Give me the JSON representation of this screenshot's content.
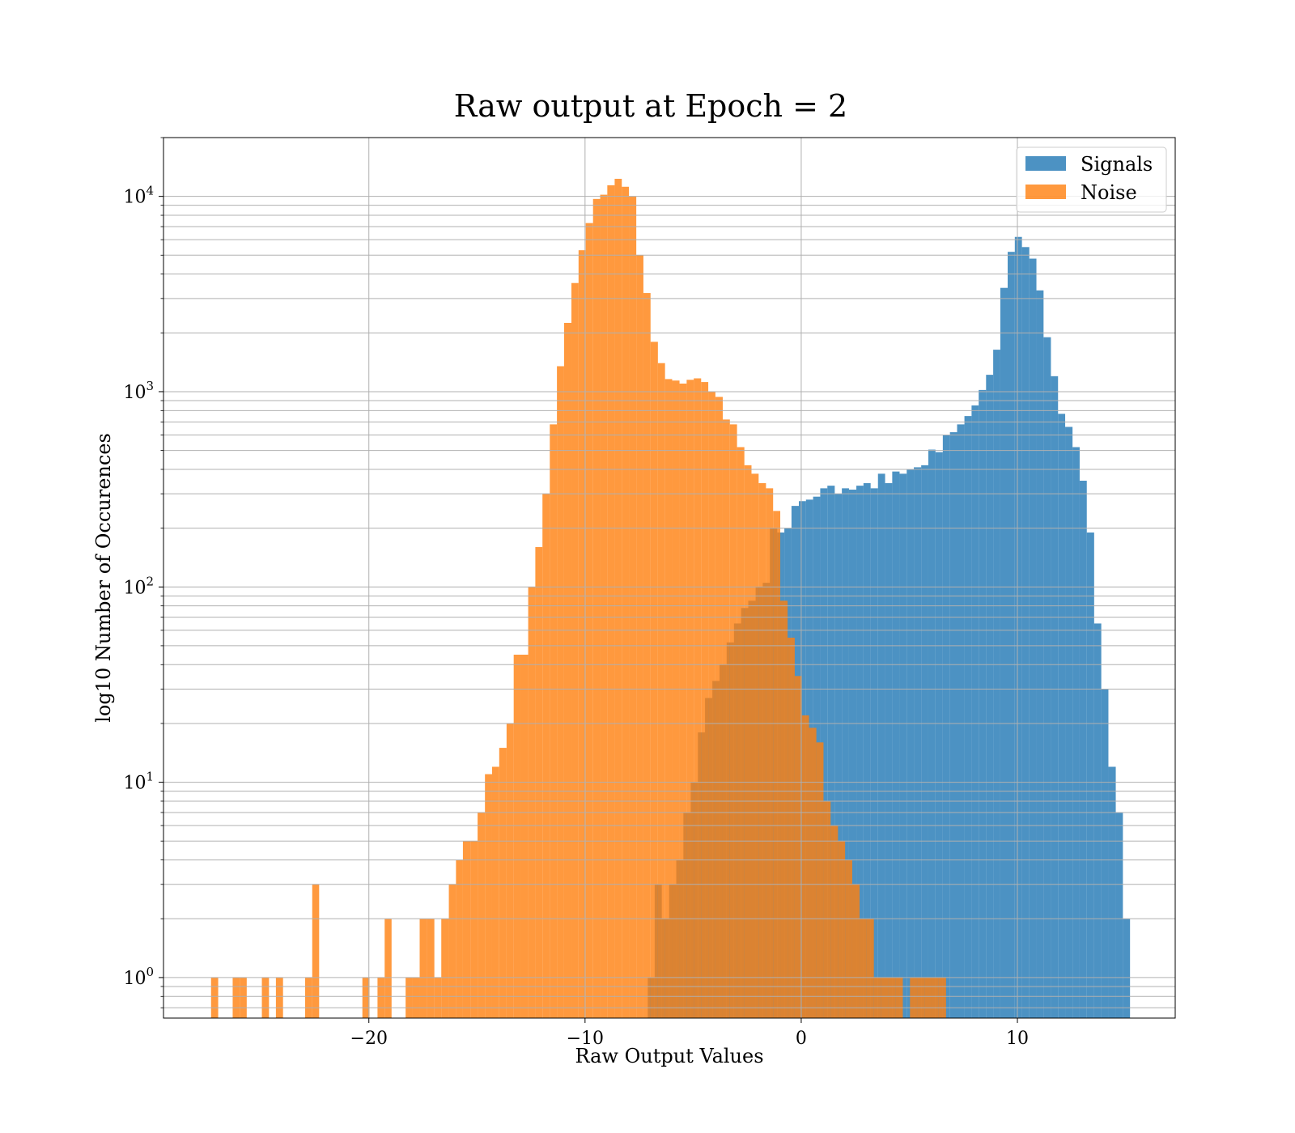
{
  "chart_data": {
    "type": "histogram",
    "title": "Raw output at Epoch = 2",
    "xlabel": "Raw Output Values",
    "ylabel": "log10 Number of Occurences",
    "xlim": [
      -29.5,
      17.3
    ],
    "ylim": [
      0.62,
      20000
    ],
    "yscale": "log",
    "grid": true,
    "legend": "top-right",
    "xticks": [
      {
        "value": -20,
        "label": "−20"
      },
      {
        "value": -10,
        "label": "−10"
      },
      {
        "value": 0,
        "label": "0"
      },
      {
        "value": 10,
        "label": "10"
      }
    ],
    "yticks": [
      {
        "value": 1,
        "base": "10",
        "exp": "0"
      },
      {
        "value": 10,
        "base": "10",
        "exp": "1"
      },
      {
        "value": 100,
        "base": "10",
        "exp": "2"
      },
      {
        "value": 1000,
        "base": "10",
        "exp": "3"
      },
      {
        "value": 10000,
        "base": "10",
        "exp": "4"
      }
    ],
    "series": [
      {
        "name": "Signals",
        "color": "#1f77b4",
        "opacity": 0.8,
        "bins": [
          [
            -7.1,
            -6.78,
            1
          ],
          [
            -6.78,
            -6.45,
            3
          ],
          [
            -6.45,
            -6.11,
            2
          ],
          [
            -6.11,
            -5.78,
            3
          ],
          [
            -5.78,
            -5.45,
            4
          ],
          [
            -5.45,
            -5.11,
            7
          ],
          [
            -5.11,
            -4.78,
            10
          ],
          [
            -4.78,
            -4.45,
            18
          ],
          [
            -4.45,
            -4.11,
            27
          ],
          [
            -4.11,
            -3.78,
            33
          ],
          [
            -3.78,
            -3.45,
            40
          ],
          [
            -3.45,
            -3.11,
            52
          ],
          [
            -3.11,
            -2.78,
            65
          ],
          [
            -2.78,
            -2.45,
            78
          ],
          [
            -2.45,
            -2.11,
            85
          ],
          [
            -2.11,
            -1.78,
            100
          ],
          [
            -1.78,
            -1.45,
            105
          ],
          [
            -1.45,
            -1.11,
            200
          ],
          [
            -1.11,
            -0.78,
            190
          ],
          [
            -0.78,
            -0.45,
            200
          ],
          [
            -0.45,
            -0.11,
            260
          ],
          [
            -0.11,
            0.22,
            275
          ],
          [
            0.22,
            0.55,
            280
          ],
          [
            0.55,
            0.88,
            290
          ],
          [
            0.88,
            1.21,
            320
          ],
          [
            1.21,
            1.55,
            330
          ],
          [
            1.55,
            1.88,
            300
          ],
          [
            1.88,
            2.21,
            320
          ],
          [
            2.21,
            2.55,
            315
          ],
          [
            2.55,
            2.88,
            330
          ],
          [
            2.88,
            3.21,
            340
          ],
          [
            3.21,
            3.55,
            320
          ],
          [
            3.55,
            3.88,
            380
          ],
          [
            3.88,
            4.21,
            340
          ],
          [
            4.21,
            4.55,
            390
          ],
          [
            4.55,
            4.88,
            380
          ],
          [
            4.88,
            5.21,
            400
          ],
          [
            5.21,
            5.55,
            410
          ],
          [
            5.55,
            5.88,
            420
          ],
          [
            5.88,
            6.21,
            505
          ],
          [
            6.21,
            6.55,
            490
          ],
          [
            6.55,
            6.88,
            600
          ],
          [
            6.88,
            7.21,
            620
          ],
          [
            7.21,
            7.55,
            680
          ],
          [
            7.55,
            7.88,
            750
          ],
          [
            7.88,
            8.21,
            850
          ],
          [
            8.21,
            8.55,
            1020
          ],
          [
            8.55,
            8.88,
            1220
          ],
          [
            8.88,
            9.21,
            1640
          ],
          [
            9.21,
            9.55,
            3400
          ],
          [
            9.55,
            9.88,
            5200
          ],
          [
            9.88,
            10.21,
            6200
          ],
          [
            10.21,
            10.55,
            5500
          ],
          [
            10.55,
            10.88,
            4800
          ],
          [
            10.88,
            11.21,
            3300
          ],
          [
            11.21,
            11.55,
            1900
          ],
          [
            11.55,
            11.88,
            1200
          ],
          [
            11.88,
            12.21,
            770
          ],
          [
            12.21,
            12.55,
            660
          ],
          [
            12.55,
            12.88,
            520
          ],
          [
            12.88,
            13.21,
            350
          ],
          [
            13.21,
            13.55,
            190
          ],
          [
            13.55,
            13.88,
            65
          ],
          [
            13.88,
            14.21,
            30
          ],
          [
            14.21,
            14.55,
            12
          ],
          [
            14.55,
            14.88,
            7
          ],
          [
            14.88,
            15.21,
            2
          ]
        ]
      },
      {
        "name": "Noise",
        "color": "#ff7f0e",
        "opacity": 0.8,
        "bins": [
          [
            -27.3,
            -26.97,
            1
          ],
          [
            -26.3,
            -25.97,
            1
          ],
          [
            -25.97,
            -25.65,
            1
          ],
          [
            -24.95,
            -24.62,
            1
          ],
          [
            -24.3,
            -23.97,
            1
          ],
          [
            -22.95,
            -22.62,
            1
          ],
          [
            -22.62,
            -22.3,
            3
          ],
          [
            -20.3,
            -19.97,
            1
          ],
          [
            -19.6,
            -19.27,
            1
          ],
          [
            -19.27,
            -18.95,
            2
          ],
          [
            -18.3,
            -17.97,
            1
          ],
          [
            -17.97,
            -17.65,
            1
          ],
          [
            -17.65,
            -17.3,
            2
          ],
          [
            -17.3,
            -16.97,
            2
          ],
          [
            -16.97,
            -16.65,
            1
          ],
          [
            -16.65,
            -16.3,
            2
          ],
          [
            -16.3,
            -15.97,
            3
          ],
          [
            -15.97,
            -15.65,
            4
          ],
          [
            -15.65,
            -15.3,
            5
          ],
          [
            -15.3,
            -14.97,
            5
          ],
          [
            -14.97,
            -14.63,
            7
          ],
          [
            -14.63,
            -14.3,
            11
          ],
          [
            -14.3,
            -13.97,
            12
          ],
          [
            -13.97,
            -13.63,
            15
          ],
          [
            -13.63,
            -13.3,
            20
          ],
          [
            -13.3,
            -12.97,
            45
          ],
          [
            -12.97,
            -12.63,
            45
          ],
          [
            -12.63,
            -12.3,
            100
          ],
          [
            -12.3,
            -11.97,
            160
          ],
          [
            -11.97,
            -11.63,
            300
          ],
          [
            -11.63,
            -11.3,
            680
          ],
          [
            -11.3,
            -10.97,
            1350
          ],
          [
            -10.97,
            -10.63,
            2250
          ],
          [
            -10.63,
            -10.3,
            3600
          ],
          [
            -10.3,
            -9.97,
            5300
          ],
          [
            -9.97,
            -9.63,
            7300
          ],
          [
            -9.63,
            -9.3,
            9700
          ],
          [
            -9.3,
            -8.97,
            10200
          ],
          [
            -8.97,
            -8.63,
            11400
          ],
          [
            -8.63,
            -8.3,
            12300
          ],
          [
            -8.3,
            -7.97,
            11200
          ],
          [
            -7.97,
            -7.63,
            10000
          ],
          [
            -7.63,
            -7.3,
            5000
          ],
          [
            -7.3,
            -6.97,
            3200
          ],
          [
            -6.97,
            -6.63,
            1800
          ],
          [
            -6.63,
            -6.3,
            1400
          ],
          [
            -6.3,
            -5.97,
            1160
          ],
          [
            -5.97,
            -5.63,
            1140
          ],
          [
            -5.63,
            -5.3,
            1100
          ],
          [
            -5.3,
            -4.97,
            1150
          ],
          [
            -4.97,
            -4.63,
            1170
          ],
          [
            -4.63,
            -4.3,
            1120
          ],
          [
            -4.3,
            -3.97,
            1000
          ],
          [
            -3.97,
            -3.63,
            940
          ],
          [
            -3.63,
            -3.3,
            720
          ],
          [
            -3.3,
            -2.97,
            680
          ],
          [
            -2.97,
            -2.63,
            520
          ],
          [
            -2.63,
            -2.3,
            420
          ],
          [
            -2.3,
            -1.97,
            380
          ],
          [
            -1.97,
            -1.63,
            340
          ],
          [
            -1.63,
            -1.3,
            320
          ],
          [
            -1.3,
            -0.97,
            245
          ],
          [
            -0.97,
            -0.63,
            85
          ],
          [
            -0.63,
            -0.3,
            55
          ],
          [
            -0.3,
            0.03,
            35
          ],
          [
            0.03,
            0.36,
            22
          ],
          [
            0.36,
            0.7,
            19
          ],
          [
            0.7,
            1.03,
            16
          ],
          [
            1.03,
            1.36,
            8
          ],
          [
            1.36,
            1.7,
            6
          ],
          [
            1.7,
            2.03,
            5
          ],
          [
            2.03,
            2.36,
            4
          ],
          [
            2.36,
            2.7,
            3
          ],
          [
            2.7,
            3.03,
            2
          ],
          [
            3.03,
            3.36,
            2
          ],
          [
            3.36,
            3.7,
            1
          ],
          [
            3.7,
            4.03,
            1
          ],
          [
            4.03,
            4.36,
            1
          ],
          [
            4.36,
            4.7,
            1
          ],
          [
            5.03,
            5.36,
            1
          ],
          [
            5.36,
            5.7,
            1
          ],
          [
            5.7,
            6.03,
            1
          ],
          [
            6.03,
            6.36,
            1
          ],
          [
            6.36,
            6.7,
            1
          ]
        ]
      }
    ]
  }
}
